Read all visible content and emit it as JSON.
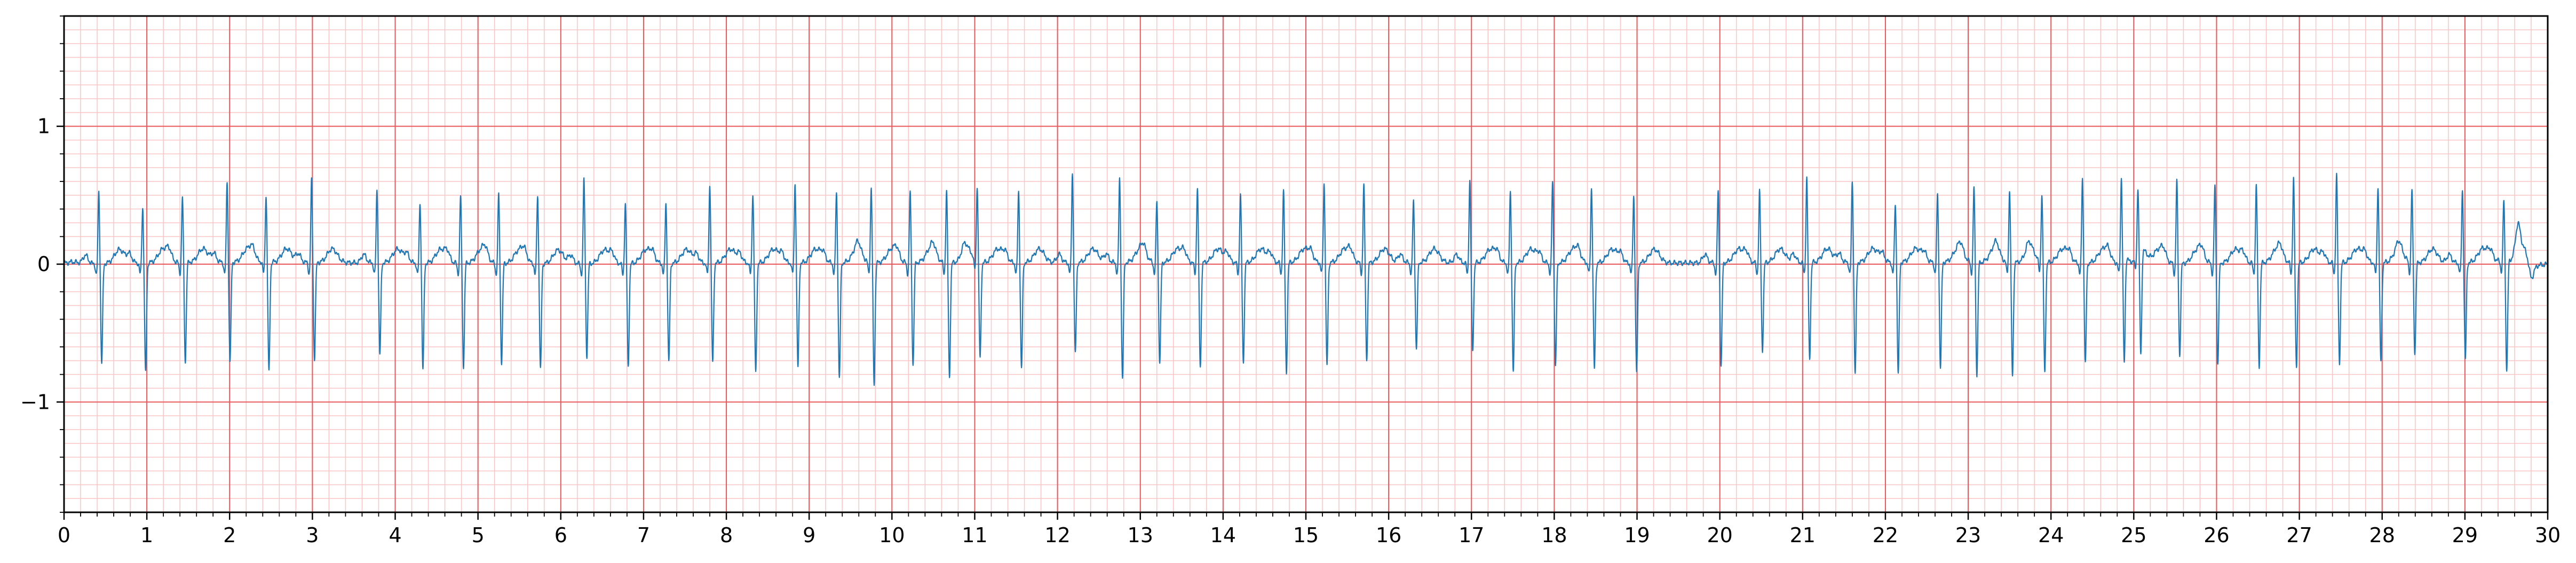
{
  "chart_data": {
    "type": "line",
    "title": "",
    "xlabel": "",
    "ylabel": "",
    "xlim": [
      0,
      30
    ],
    "ylim": [
      -1.8,
      1.8
    ],
    "x_ticks": [
      0,
      1,
      2,
      3,
      4,
      5,
      6,
      7,
      8,
      9,
      10,
      11,
      12,
      13,
      14,
      15,
      16,
      17,
      18,
      19,
      20,
      21,
      22,
      23,
      24,
      25,
      26,
      27,
      28,
      29,
      30
    ],
    "x_tick_labels": [
      "0",
      "1",
      "2",
      "3",
      "4",
      "5",
      "6",
      "7",
      "8",
      "9",
      "10",
      "11",
      "12",
      "13",
      "14",
      "15",
      "16",
      "17",
      "18",
      "19",
      "20",
      "21",
      "22",
      "23",
      "24",
      "25",
      "26",
      "27",
      "28",
      "29",
      "30"
    ],
    "y_ticks": [
      -1,
      0,
      1
    ],
    "y_tick_labels": [
      "−1",
      "0",
      "1"
    ],
    "x_minor_step": 0.2,
    "y_minor_step": 0.1,
    "grid": true,
    "legend": false,
    "colors": {
      "trace": "#1f77b4",
      "major_grid": "#e8585a",
      "minor_grid": "#f9c5c5",
      "axes": "#000000"
    },
    "series": [
      {
        "name": "",
        "beat_times": [
          0.42,
          0.95,
          1.43,
          1.97,
          2.44,
          2.99,
          3.78,
          4.3,
          4.79,
          5.25,
          5.72,
          6.28,
          6.78,
          7.27,
          7.8,
          8.32,
          8.83,
          9.33,
          9.75,
          10.22,
          10.66,
          11.03,
          11.53,
          12.18,
          12.75,
          13.2,
          13.69,
          14.21,
          14.73,
          15.22,
          15.7,
          16.3,
          16.98,
          17.47,
          17.98,
          18.45,
          18.96,
          19.98,
          20.48,
          21.05,
          21.6,
          22.12,
          22.63,
          23.07,
          23.5,
          23.89,
          24.38,
          24.85,
          25.05,
          25.52,
          25.98,
          26.48,
          26.93,
          27.45,
          27.95,
          28.36,
          28.97,
          29.47
        ],
        "r_peaks": [
          0.53,
          0.41,
          0.48,
          0.59,
          0.49,
          0.6,
          0.53,
          0.44,
          0.49,
          0.51,
          0.5,
          0.62,
          0.44,
          0.44,
          0.58,
          0.51,
          0.59,
          0.51,
          0.55,
          0.52,
          0.52,
          0.55,
          0.52,
          0.65,
          0.61,
          0.45,
          0.55,
          0.5,
          0.52,
          0.58,
          0.57,
          0.45,
          0.6,
          0.52,
          0.59,
          0.55,
          0.49,
          0.53,
          0.52,
          0.62,
          0.59,
          0.43,
          0.5,
          0.55,
          0.53,
          0.49,
          0.62,
          0.6,
          0.48,
          0.6,
          0.56,
          0.57,
          0.62,
          0.64,
          0.56,
          0.53,
          0.53,
          0.44
        ],
        "s_troughs": [
          -0.72,
          -0.8,
          -0.72,
          -0.72,
          -0.8,
          -0.7,
          -0.66,
          -0.77,
          -0.75,
          -0.72,
          -0.77,
          -0.67,
          -0.75,
          -0.72,
          -0.72,
          -0.8,
          -0.76,
          -0.84,
          -0.88,
          -0.74,
          -0.83,
          -0.7,
          -0.77,
          -0.66,
          -0.84,
          -0.73,
          -0.76,
          -0.73,
          -0.8,
          -0.75,
          -0.71,
          -0.63,
          -0.64,
          -0.79,
          -0.75,
          -0.77,
          -0.8,
          -0.75,
          -0.64,
          -0.7,
          -0.8,
          -0.81,
          -0.76,
          -0.82,
          -0.82,
          -0.8,
          -0.73,
          -0.78,
          -0.76,
          -0.67,
          -0.73,
          -0.75,
          -0.76,
          -0.73,
          -0.72,
          -0.66,
          -0.7,
          -0.8
        ],
        "baseline_wander": [
          [
            0,
            0.05
          ],
          [
            0.1,
            0.12
          ],
          [
            0.3,
            0.02
          ],
          [
            1.2,
            0.08
          ],
          [
            2.2,
            0.1
          ],
          [
            3.3,
            0.08
          ],
          [
            4.0,
            0.06
          ],
          [
            6.3,
            0.02
          ],
          [
            8.1,
            0.06
          ],
          [
            12.3,
            0.08
          ],
          [
            16.5,
            0.08
          ],
          [
            17.2,
            0.06
          ],
          [
            19.1,
            0.06
          ],
          [
            22.4,
            0.1
          ],
          [
            25.5,
            0.04
          ],
          [
            27.8,
            0.08
          ],
          [
            29.0,
            0.06
          ],
          [
            29.64,
            0.24
          ],
          [
            29.8,
            -0.12
          ],
          [
            30,
            0.0
          ]
        ]
      }
    ]
  }
}
